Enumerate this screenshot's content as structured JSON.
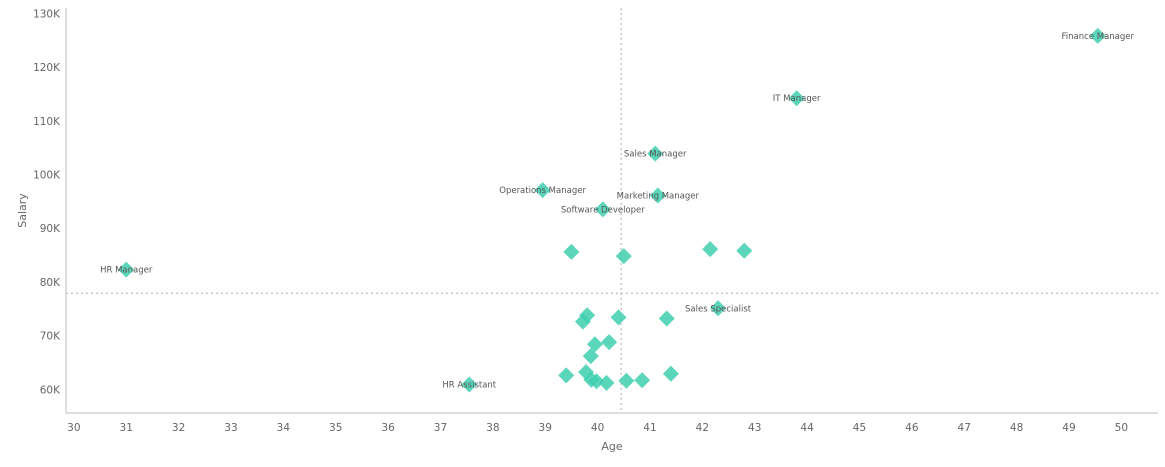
{
  "chart_data": {
    "type": "scatter",
    "xlabel": "Age",
    "ylabel": "Salary",
    "xlim": [
      29.85,
      50.7
    ],
    "ylim": [
      55600,
      131000
    ],
    "xticks": [
      30,
      31,
      32,
      33,
      34,
      35,
      36,
      37,
      38,
      39,
      40,
      41,
      42,
      43,
      44,
      45,
      46,
      47,
      48,
      49,
      50
    ],
    "xtick_labels": [
      "30",
      "31",
      "32",
      "33",
      "34",
      "35",
      "36",
      "37",
      "38",
      "39",
      "40",
      "41",
      "42",
      "43",
      "44",
      "45",
      "46",
      "47",
      "48",
      "49",
      "50"
    ],
    "yticks": [
      60000,
      70000,
      80000,
      90000,
      100000,
      110000,
      120000,
      130000
    ],
    "ytick_labels": [
      "60K",
      "70K",
      "80K",
      "90K",
      "100K",
      "110K",
      "120K",
      "130K"
    ],
    "reference_lines": {
      "x": 40.45,
      "y": 77900
    },
    "marker_color": "#3ecfae",
    "marker_shape": "diamond",
    "points": [
      {
        "x": 49.55,
        "y": 125800,
        "label": "Finance Manager"
      },
      {
        "x": 43.8,
        "y": 114200,
        "label": "IT Manager"
      },
      {
        "x": 41.1,
        "y": 103900,
        "label": "Sales Manager"
      },
      {
        "x": 38.95,
        "y": 97100,
        "label": "Operations Manager"
      },
      {
        "x": 41.15,
        "y": 96100,
        "label": "Marketing Manager"
      },
      {
        "x": 40.1,
        "y": 93500,
        "label": "Software Developer"
      },
      {
        "x": 31.0,
        "y": 82300,
        "label": "HR Manager"
      },
      {
        "x": 42.3,
        "y": 75100,
        "label": "Sales Specialist"
      },
      {
        "x": 37.55,
        "y": 60900,
        "label": "HR Assistant"
      },
      {
        "x": 39.5,
        "y": 85600
      },
      {
        "x": 40.5,
        "y": 84800
      },
      {
        "x": 42.15,
        "y": 86100
      },
      {
        "x": 42.8,
        "y": 85800
      },
      {
        "x": 39.8,
        "y": 73800
      },
      {
        "x": 39.72,
        "y": 72600
      },
      {
        "x": 40.4,
        "y": 73400
      },
      {
        "x": 41.32,
        "y": 73200
      },
      {
        "x": 39.95,
        "y": 68400
      },
      {
        "x": 40.22,
        "y": 68800
      },
      {
        "x": 39.87,
        "y": 66200
      },
      {
        "x": 39.4,
        "y": 62600
      },
      {
        "x": 39.78,
        "y": 63200
      },
      {
        "x": 39.88,
        "y": 61800
      },
      {
        "x": 39.98,
        "y": 61500
      },
      {
        "x": 40.17,
        "y": 61200
      },
      {
        "x": 40.55,
        "y": 61600
      },
      {
        "x": 40.85,
        "y": 61700
      },
      {
        "x": 41.4,
        "y": 62900
      }
    ]
  }
}
